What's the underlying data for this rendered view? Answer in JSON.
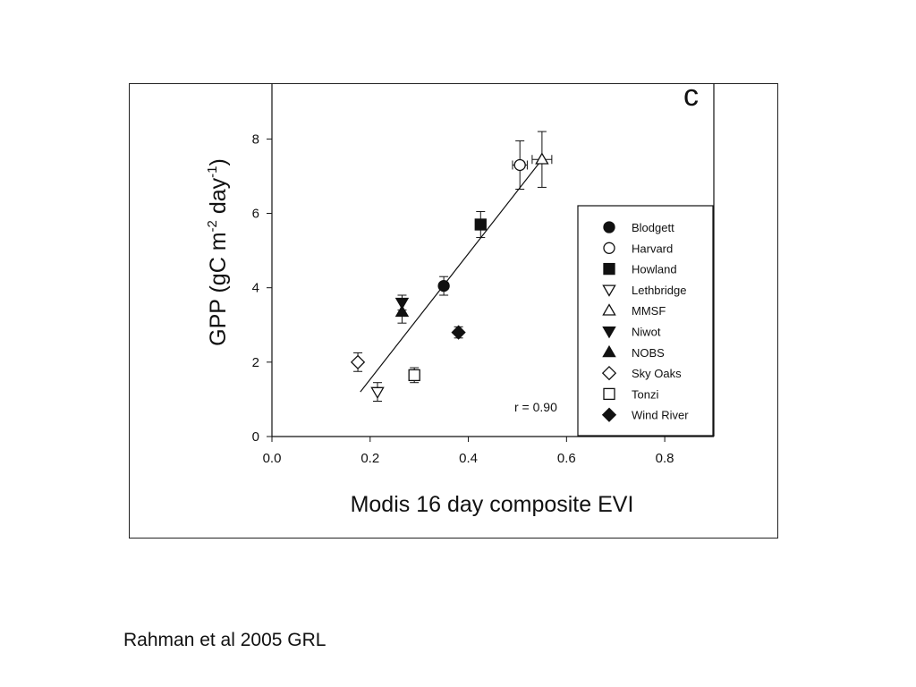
{
  "caption": "Rahman et al 2005 GRL",
  "chart_data": {
    "type": "scatter",
    "panel_label": "c",
    "xlabel": "Modis 16 day composite EVI",
    "ylabel": {
      "base": "GPP (gC m",
      "sup1": "-2",
      "mid": " day",
      "sup2": "-1",
      "end": ")"
    },
    "xlim": [
      0.0,
      0.9
    ],
    "ylim": [
      0,
      9.5
    ],
    "xticks": [
      0.0,
      0.2,
      0.4,
      0.6,
      0.8
    ],
    "xtick_labels": [
      "0.0",
      "0.2",
      "0.4",
      "0.6",
      "0.8"
    ],
    "yticks": [
      0,
      2,
      4,
      6,
      8
    ],
    "ytick_labels": [
      "0",
      "2",
      "4",
      "6",
      "8"
    ],
    "grid": false,
    "legend_position": "right",
    "annotation": "r = 0.90",
    "fit_line": {
      "x": [
        0.18,
        0.55
      ],
      "y": [
        1.2,
        7.45
      ]
    },
    "series": [
      {
        "name": "Blodgett",
        "marker": "circle",
        "filled": true,
        "x": 0.35,
        "y": 4.05,
        "yerr": 0.25,
        "xerr": 0
      },
      {
        "name": "Harvard",
        "marker": "circle",
        "filled": false,
        "x": 0.505,
        "y": 7.3,
        "yerr": 0.65,
        "xerr": 0.015
      },
      {
        "name": "Howland",
        "marker": "square",
        "filled": true,
        "x": 0.425,
        "y": 5.7,
        "yerr": 0.35,
        "xerr": 0
      },
      {
        "name": "Lethbridge",
        "marker": "triangle-down",
        "filled": false,
        "x": 0.215,
        "y": 1.2,
        "yerr": 0.25,
        "xerr": 0
      },
      {
        "name": "MMSF",
        "marker": "triangle-up",
        "filled": false,
        "x": 0.55,
        "y": 7.45,
        "yerr": 0.75,
        "xerr": 0.02
      },
      {
        "name": "Niwot",
        "marker": "triangle-down",
        "filled": true,
        "x": 0.265,
        "y": 3.6,
        "yerr": 0.2,
        "xerr": 0
      },
      {
        "name": "NOBS",
        "marker": "triangle-up",
        "filled": true,
        "x": 0.265,
        "y": 3.35,
        "yerr": 0.3,
        "xerr": 0
      },
      {
        "name": "Sky Oaks",
        "marker": "diamond",
        "filled": false,
        "x": 0.175,
        "y": 2.0,
        "yerr": 0.25,
        "xerr": 0
      },
      {
        "name": "Tonzi",
        "marker": "square",
        "filled": false,
        "x": 0.29,
        "y": 1.65,
        "yerr": 0.2,
        "xerr": 0
      },
      {
        "name": "Wind River",
        "marker": "diamond",
        "filled": true,
        "x": 0.38,
        "y": 2.8,
        "yerr": 0.15,
        "xerr": 0
      }
    ]
  }
}
